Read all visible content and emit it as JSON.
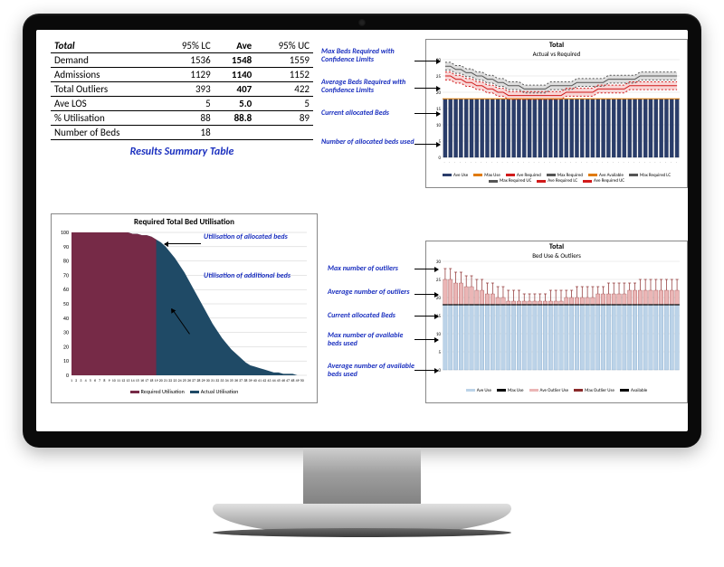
{
  "summary": {
    "header": [
      "Total",
      "95% LC",
      "Ave",
      "95% UC"
    ],
    "rows": [
      {
        "label": "Demand",
        "lc": 1536,
        "ave": 1548,
        "uc": 1559
      },
      {
        "label": "Admissions",
        "lc": 1129,
        "ave": 1140,
        "uc": 1152
      },
      {
        "label": "Total Outliers",
        "lc": 393,
        "ave": 407,
        "uc": 422
      },
      {
        "label": "Ave LOS",
        "lc": 5,
        "ave": "5.0",
        "uc": 5
      },
      {
        "label": "% Utilisation",
        "lc": 88,
        "ave": "88.8",
        "uc": 89
      },
      {
        "label": "Number of Beds",
        "lc": "18",
        "ave": "",
        "uc": ""
      }
    ],
    "caption": "Results  Summary  Table"
  },
  "annotations_top": {
    "a1": "Max Beds Required with Confidence Limits",
    "a2": "Average Beds Required with Confidence Limits",
    "a3": "Current allocated Beds",
    "a4": "Number of allocated beds used"
  },
  "annotations_util": {
    "a1": "Utilisation of allocated beds",
    "a2": "Utilisation of additional beds"
  },
  "annotations_bot": {
    "a1": "Max number of outliers",
    "a2": "Average number of outliers",
    "a3": "Current allocated Beds",
    "a4": "Max number of available beds used",
    "a5": "Average number of available beds used"
  },
  "chart_util": {
    "title": "Required Total Bed Utilisation",
    "legend": [
      "Required Utilisation",
      "Actual Utilisation"
    ],
    "colors": {
      "required": "#762a47",
      "actual": "#1f4a66",
      "tick": "#000"
    },
    "ylim": [
      0,
      100
    ],
    "yticks": [
      0,
      10,
      20,
      30,
      40,
      50,
      60,
      70,
      80,
      90,
      100
    ],
    "split_x": 18,
    "xmax": 50,
    "curve": [
      100,
      100,
      100,
      100,
      100,
      100,
      100,
      100,
      100,
      100,
      100,
      100,
      100,
      99,
      99,
      98,
      98,
      97,
      95,
      93,
      90,
      86,
      82,
      77,
      72,
      66,
      60,
      54,
      48,
      42,
      36,
      31,
      26,
      22,
      18,
      15,
      12,
      9,
      7,
      6,
      5,
      4,
      3,
      2,
      2,
      1,
      1,
      1,
      0,
      0
    ]
  },
  "chart_top": {
    "title": "Total",
    "subtitle": "Actual vs Required",
    "legend": [
      "Ave Use",
      "Max Use",
      "Ave Required",
      "Max Required",
      "Ave Available",
      "Max Required LC",
      "Max Required UC",
      "Ave Required LC",
      "Ave Required UC"
    ],
    "colors": {
      "bars": "#2a3d6b",
      "barOutline": "#1a2848",
      "aveReq": "#d11a1a",
      "maxReq": "#555",
      "avail": "#e07a00",
      "bandAve": "#f4bcbc",
      "bandMax": "#c8c8c8",
      "axis": "#000"
    },
    "ylim": [
      0,
      30
    ],
    "yticks": [
      0,
      5,
      10,
      15,
      20,
      25,
      30
    ],
    "n": 45,
    "bar_value": 18,
    "available": 18,
    "maxReq": [
      28,
      28,
      27,
      27,
      26,
      26,
      25,
      25,
      24,
      24,
      23,
      23,
      22,
      22,
      22,
      21,
      21,
      21,
      21,
      21,
      22,
      22,
      22,
      22,
      22,
      23,
      23,
      23,
      23,
      23,
      23,
      24,
      24,
      24,
      24,
      24,
      24,
      25,
      25,
      25,
      25,
      25,
      25,
      25,
      25
    ],
    "aveReq": [
      25,
      25,
      24,
      24,
      23,
      23,
      22,
      22,
      21,
      21,
      20,
      20,
      19,
      19,
      19,
      19,
      19,
      19,
      19,
      19,
      19,
      19,
      19,
      20,
      20,
      20,
      20,
      20,
      20,
      21,
      21,
      21,
      21,
      21,
      21,
      22,
      22,
      22,
      22,
      22,
      22,
      22,
      22,
      22,
      22
    ],
    "band": 1.2
  },
  "chart_bot": {
    "title": "Total",
    "subtitle": "Bed Use & Outliers",
    "legend": [
      "Ave Use",
      "Max Use",
      "Ave Outlier Use",
      "Max Outlier Use",
      "Available"
    ],
    "colors": {
      "barsLight": "#bcd3e8",
      "barsLightLine": "#6f9ac2",
      "barsDark": "#000",
      "outAve": "#ebb6b6",
      "outMax": "#8a2a2a",
      "avail": "#000",
      "axis": "#000"
    },
    "ylim": [
      0,
      30
    ],
    "yticks": [
      0,
      5,
      10,
      15,
      20,
      25,
      30
    ],
    "n": 45,
    "available": 18,
    "aveUse": [
      18,
      18,
      18,
      18,
      18,
      18,
      18,
      18,
      18,
      18,
      18,
      18,
      18,
      18,
      18,
      18,
      18,
      18,
      18,
      18,
      18,
      18,
      18,
      18,
      18,
      18,
      18,
      18,
      18,
      18,
      18,
      18,
      18,
      18,
      18,
      18,
      18,
      18,
      18,
      18,
      18,
      18,
      18,
      18,
      18
    ],
    "maxUse": [
      18,
      18,
      18,
      18,
      18,
      18,
      18,
      18,
      18,
      18,
      18,
      18,
      18,
      18,
      18,
      18,
      18,
      18,
      18,
      18,
      18,
      18,
      18,
      18,
      18,
      18,
      18,
      18,
      18,
      18,
      18,
      18,
      18,
      18,
      18,
      18,
      18,
      18,
      18,
      18,
      18,
      18,
      18,
      18,
      18
    ],
    "aveOut": [
      25,
      25,
      24,
      24,
      23,
      23,
      22,
      22,
      21,
      21,
      20,
      20,
      19,
      19,
      19,
      19,
      19,
      19,
      19,
      19,
      19,
      19,
      19,
      20,
      20,
      20,
      20,
      20,
      20,
      21,
      21,
      21,
      21,
      21,
      21,
      22,
      22,
      22,
      22,
      22,
      22,
      22,
      22,
      22,
      22
    ],
    "maxOut": [
      28,
      28,
      27,
      27,
      26,
      26,
      25,
      25,
      24,
      24,
      23,
      23,
      22,
      22,
      22,
      21,
      21,
      21,
      21,
      21,
      22,
      22,
      22,
      22,
      22,
      23,
      23,
      23,
      23,
      23,
      23,
      24,
      24,
      24,
      24,
      24,
      24,
      25,
      25,
      25,
      25,
      25,
      25,
      25,
      25
    ]
  }
}
